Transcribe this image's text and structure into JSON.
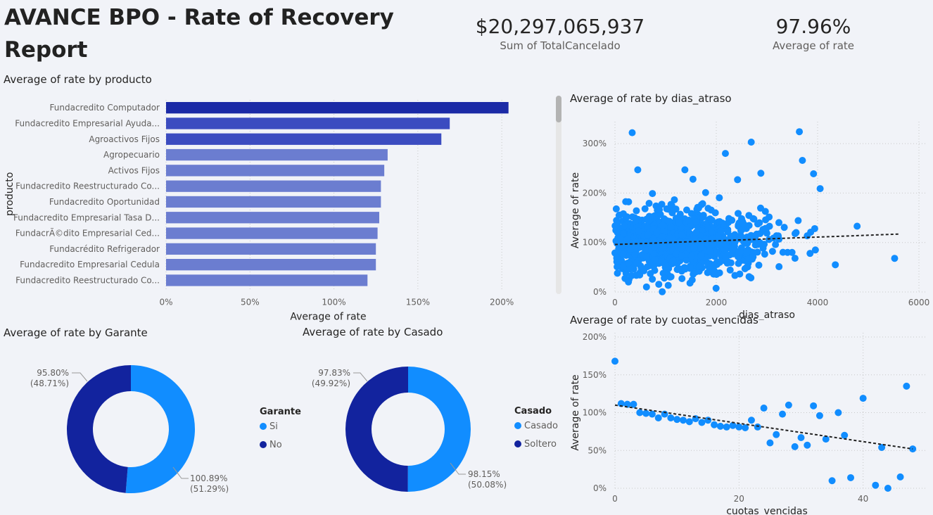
{
  "report": {
    "title": "AVANCE BPO - Rate of Recovery Report"
  },
  "kpis": [
    {
      "value": "$20,297,065,937",
      "label": "Sum of TotalCancelado"
    },
    {
      "value": "97.96%",
      "label": "Average of rate"
    }
  ],
  "colors": {
    "dark_navy": "#12239e",
    "bar_top": "#1b2aa6",
    "bar_mid": "#3b4cc0",
    "bar_light": "#6b7dd0",
    "light_blue": "#118dff",
    "background": "#f1f3f8"
  },
  "chart_data": [
    {
      "id": "bar",
      "type": "bar",
      "orientation": "horizontal",
      "title": "Average of rate by producto",
      "xlabel": "Average of rate",
      "ylabel": "producto",
      "xlim": [
        0,
        2.1
      ],
      "xticks": [
        0,
        0.5,
        1.0,
        1.5,
        2.0
      ],
      "xtick_labels": [
        "0%",
        "50%",
        "100%",
        "150%",
        "200%"
      ],
      "categories": [
        "Fundacredito Computador",
        "Fundacredito Empresarial Ayuda...",
        "Agroactivos Fijos",
        "Agropecuario",
        "Activos Fijos",
        "Fundacredito Reestructurado Co...",
        "Fundacredito Oportunidad",
        "Fundacredito Empresarial Tasa D...",
        "FundacrÃ©dito Empresarial Ced...",
        "Fundacrédito Refrigerador",
        "Fundacredito Empresarial Cedula",
        "Fundacredito Reestructurado Co..."
      ],
      "values": [
        2.04,
        1.69,
        1.64,
        1.32,
        1.3,
        1.28,
        1.28,
        1.27,
        1.26,
        1.25,
        1.25,
        1.2
      ]
    },
    {
      "id": "scatter_dias",
      "type": "scatter",
      "title": "Average of rate by dias_atraso",
      "xlabel": "dias_atraso",
      "ylabel": "Average of rate",
      "xlim": [
        0,
        6000
      ],
      "ylim": [
        0,
        3.3
      ],
      "xticks": [
        0,
        2000,
        4000,
        6000
      ],
      "xtick_labels": [
        "0",
        "2000",
        "4000",
        "6000"
      ],
      "yticks": [
        0,
        1,
        2,
        3
      ],
      "ytick_labels": [
        "0%",
        "100%",
        "200%",
        "300%"
      ],
      "trend": {
        "x": [
          0,
          5600
        ],
        "y": [
          0.96,
          1.17
        ]
      },
      "outliers": {
        "x": [
          340,
          450,
          740,
          1380,
          1540,
          2180,
          2420,
          2690,
          2880,
          3640,
          3700,
          3920,
          4050,
          4350,
          4780,
          5520
        ],
        "y": [
          3.22,
          2.47,
          1.99,
          2.47,
          2.28,
          2.8,
          2.27,
          3.03,
          2.4,
          3.24,
          2.66,
          2.39,
          2.09,
          0.55,
          1.33,
          0.68
        ]
      },
      "n_dense": 900
    },
    {
      "id": "scatter_cuotas",
      "type": "scatter",
      "title": "Average of rate by cuotas_vencidas",
      "xlabel": "cuotas_vencidas",
      "ylabel": "Average of rate",
      "xlim": [
        0,
        49
      ],
      "ylim": [
        0,
        2.0
      ],
      "xticks": [
        0,
        20,
        40
      ],
      "xtick_labels": [
        "0",
        "20",
        "40"
      ],
      "yticks": [
        0,
        0.5,
        1.0,
        1.5,
        2.0
      ],
      "ytick_labels": [
        "0%",
        "50%",
        "100%",
        "150%",
        "200%"
      ],
      "trend": {
        "x": [
          0,
          48
        ],
        "y": [
          1.1,
          0.52
        ]
      },
      "x": [
        0,
        1,
        2,
        3,
        4,
        5,
        6,
        7,
        8,
        9,
        10,
        11,
        12,
        13,
        14,
        15,
        16,
        17,
        18,
        19,
        20,
        21,
        22,
        23,
        24,
        25,
        26,
        27,
        28,
        29,
        30,
        31,
        32,
        33,
        34,
        35,
        36,
        37,
        38,
        40,
        42,
        43,
        44,
        46,
        47,
        48
      ],
      "y": [
        1.68,
        1.12,
        1.11,
        1.11,
        1.0,
        0.99,
        0.98,
        0.93,
        0.98,
        0.93,
        0.91,
        0.9,
        0.88,
        0.92,
        0.87,
        0.9,
        0.84,
        0.82,
        0.81,
        0.83,
        0.81,
        0.8,
        0.9,
        0.81,
        1.06,
        0.6,
        0.71,
        0.98,
        1.1,
        0.55,
        0.67,
        0.57,
        1.09,
        0.96,
        0.65,
        0.1,
        1.0,
        0.7,
        0.14,
        1.19,
        0.04,
        0.54,
        0.0,
        0.15,
        1.35,
        0.52
      ]
    },
    {
      "id": "donut_garante",
      "type": "pie",
      "title": "Average of rate by Garante",
      "legend_title": "Garante",
      "legend_position": "right",
      "labels": [
        "Si",
        "No"
      ],
      "values": [
        1.0089,
        0.958
      ],
      "shares": [
        51.29,
        48.71
      ],
      "value_labels": [
        "100.89%",
        "95.80%"
      ],
      "share_labels": [
        "(51.29%)",
        "(48.71%)"
      ]
    },
    {
      "id": "donut_casado",
      "type": "pie",
      "title": "Average of rate by Casado",
      "legend_title": "Casado",
      "legend_position": "right",
      "labels": [
        "Casado",
        "Soltero"
      ],
      "values": [
        0.9815,
        0.9783
      ],
      "shares": [
        50.08,
        49.92
      ],
      "value_labels": [
        "98.15%",
        "97.83%"
      ],
      "share_labels": [
        "(50.08%)",
        "(49.92%)"
      ]
    }
  ]
}
